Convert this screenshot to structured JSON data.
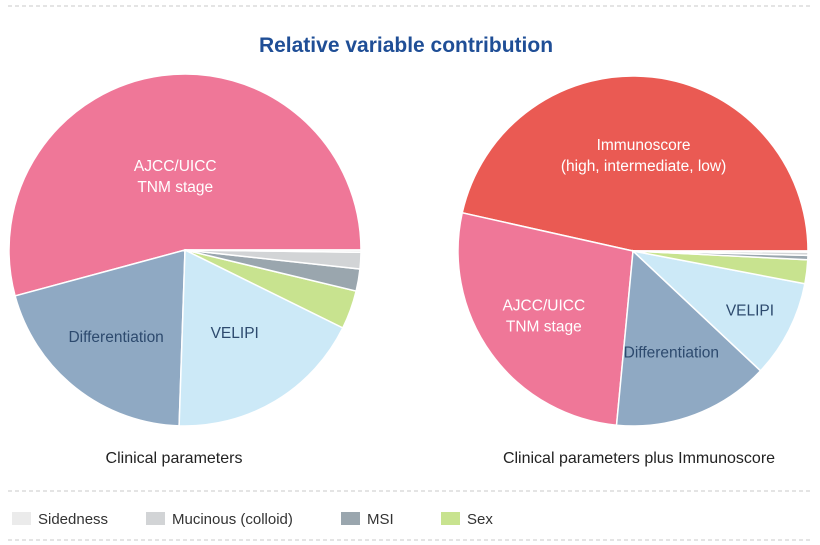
{
  "chart_data": {
    "type": "pie",
    "title": "Relative variable contribution",
    "pies": [
      {
        "caption": "Clinical parameters",
        "slices": [
          {
            "label": "AJCC/UICC\nTNM stage",
            "value": 53.5,
            "color": "#ef7798",
            "text_color": "#ffffff"
          },
          {
            "label": "Differentiation",
            "value": 20.0,
            "color": "#8fa9c3",
            "text_color": "#2d4a6e"
          },
          {
            "label": "VELIPI",
            "value": 18.0,
            "color": "#cce9f7",
            "text_color": "#2d4a6e"
          },
          {
            "label": "Sex",
            "value": 3.5,
            "color": "#c8e38f",
            "text_color": ""
          },
          {
            "label": "MSI",
            "value": 2.0,
            "color": "#9aa6ae",
            "text_color": ""
          },
          {
            "label": "Mucinous (colloid)",
            "value": 1.5,
            "color": "#d2d4d6",
            "text_color": ""
          },
          {
            "label": "Sidedness",
            "value": 0.2,
            "color": "#ebebeb",
            "text_color": ""
          }
        ]
      },
      {
        "caption": "Clinical parameters plus Immunoscore",
        "slices": [
          {
            "label": "Immunoscore\n(high, intermediate, low)",
            "value": 46.5,
            "color": "#ea5a53",
            "text_color": "#ffffff"
          },
          {
            "label": "AJCC/UICC\nTNM stage",
            "value": 27.0,
            "color": "#ef7798",
            "text_color": "#ffffff"
          },
          {
            "label": "Differentiation",
            "value": 14.5,
            "color": "#8fa9c3",
            "text_color": "#2d4a6e"
          },
          {
            "label": "VELIPI",
            "value": 9.0,
            "color": "#cce9f7",
            "text_color": "#2d4a6e"
          },
          {
            "label": "Sex",
            "value": 2.2,
            "color": "#c8e38f",
            "text_color": ""
          },
          {
            "label": "MSI",
            "value": 0.4,
            "color": "#9aa6ae",
            "text_color": ""
          },
          {
            "label": "Mucinous (colloid)",
            "value": 0.3,
            "color": "#d2d4d6",
            "text_color": ""
          },
          {
            "label": "Sidedness",
            "value": 0.1,
            "color": "#ebebeb",
            "text_color": ""
          }
        ]
      }
    ],
    "legend": [
      {
        "label": "Sidedness",
        "color": "#ebebeb"
      },
      {
        "label": "Mucinous (colloid)",
        "color": "#d2d4d6"
      },
      {
        "label": "MSI",
        "color": "#9aa6ae"
      },
      {
        "label": "Sex",
        "color": "#c8e38f"
      }
    ],
    "legend_position": "bottom"
  }
}
